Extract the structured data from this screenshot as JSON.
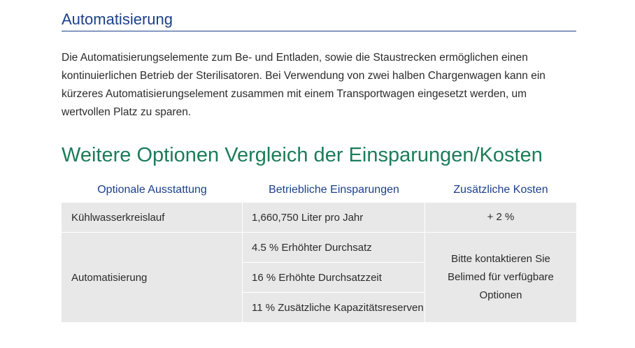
{
  "section": {
    "title": "Automatisierung",
    "paragraph": "Die Automatisierungselemente zum Be- und Entladen, sowie die Staustrecken ermöglichen einen kontinuierlichen Betrieb der Sterilisatoren. Bei Verwendung von zwei halben Chargenwagen kann ein kürzeres Automatisierungselement zusammen mit einem Transportwagen eingesetzt werden, um wertvollen Platz zu sparen."
  },
  "options": {
    "title": "Weitere Optionen Vergleich der Einsparungen/Kosten",
    "headers": [
      "Optionale Ausstattung",
      "Betriebliche Einsparungen",
      "Zusätzliche Kosten"
    ],
    "rows": [
      {
        "feature": "Kühlwasserkreislauf",
        "savings": [
          "1,660,750 Liter pro Jahr"
        ],
        "cost": "+ 2 %"
      },
      {
        "feature": "Automatisierung",
        "savings": [
          "4.5 % Erhöhter Durchsatz",
          "16 % Erhöhte Durchsatzzeit",
          "11 % Zusätzliche Kapazitätsreserven"
        ],
        "cost": "Bitte kontaktieren Sie Belimed für verfügbare Optionen"
      }
    ]
  },
  "colors": {
    "heading_blue": "#1b3f8b",
    "heading_green": "#1b7d5a",
    "cell_background": "#e8e8e8",
    "body_text": "#2b2b2b"
  }
}
